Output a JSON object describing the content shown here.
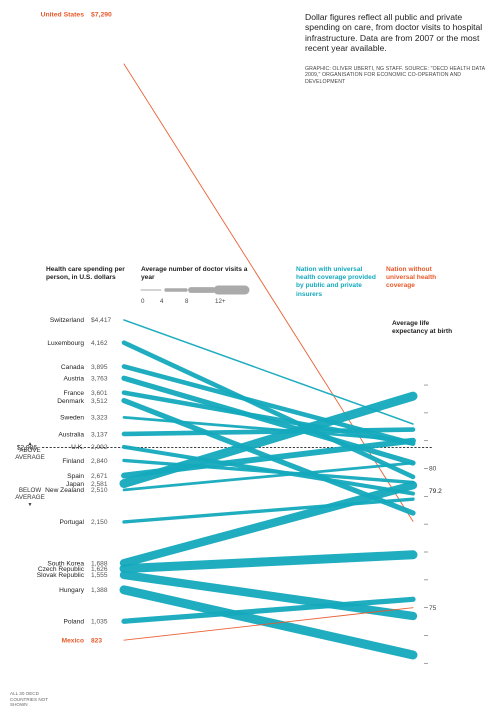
{
  "note": "Dollar figures reflect all public and private spending on care, from doctor visits to hospital infrastructure. Data are from 2007 or the most recent year available.",
  "credit": "GRAPHIC: OLIVER UBERTI, NG STAFF. SOURCE: \"OECD HEALTH DATA 2009,\" ORGANISATION FOR ECONOMIC CO-OPERATION AND DEVELOPMENT",
  "headers": {
    "spending": "Health care spending per person, in U.S. dollars",
    "visits": "Average number of doctor visits a year",
    "life": "Average life expectancy at birth"
  },
  "legend": {
    "universal": "Nation with universal health coverage provided by public and private insurers",
    "non_universal": "Nation without universal health coverage",
    "visit_ticks": [
      "0",
      "4",
      "8",
      "12+"
    ]
  },
  "average": {
    "above": "ABOVE AVERAGE",
    "below": "BELOW AVERAGE",
    "spending_label": "$2,986",
    "life_label": "79.2"
  },
  "footnote": "ALL 30 OECD COUNTRIES NOT SHOWN",
  "colors": {
    "universal": "#14a9bd",
    "non_universal": "#e85a2b"
  },
  "chart_data": {
    "type": "slope",
    "left_axis": "spending",
    "right_axis": "life",
    "right_ticks": [
      "80",
      "75"
    ],
    "right_range": [
      72.4,
      83.9
    ],
    "average_spending": 2986,
    "average_life": 79.2,
    "series": [
      {
        "country": "United States",
        "spending": 7290,
        "spending_label": "$7,290",
        "life": 78.1,
        "visits": 4,
        "universal": false
      },
      {
        "country": "Switzerland",
        "spending": 4417,
        "spending_label": "$4,417",
        "life": 81.6,
        "visits": 1,
        "universal": true
      },
      {
        "country": "Luxembourg",
        "spending": 4162,
        "spending_label": "4,162",
        "life": 79.7,
        "visits": 6,
        "universal": true
      },
      {
        "country": "Canada",
        "spending": 3895,
        "spending_label": "3,895",
        "life": 80.9,
        "visits": 6,
        "universal": true
      },
      {
        "country": "Austria",
        "spending": 3763,
        "spending_label": "3,763",
        "life": 80.2,
        "visits": 7,
        "universal": true
      },
      {
        "country": "France",
        "spending": 3601,
        "spending_label": "3,601",
        "life": 80.9,
        "visits": 6,
        "universal": true
      },
      {
        "country": "Denmark",
        "spending": 3512,
        "spending_label": "3,512",
        "life": 78.4,
        "visits": 7,
        "universal": true
      },
      {
        "country": "Sweden",
        "spending": 3323,
        "spending_label": "3,323",
        "life": 81.0,
        "visits": 3,
        "universal": true
      },
      {
        "country": "Australia",
        "spending": 3137,
        "spending_label": "3,137",
        "life": 81.4,
        "visits": 6,
        "universal": true
      },
      {
        "country": "U.K.",
        "spending": 2992,
        "spending_label": "2,992",
        "life": 79.1,
        "visits": 5,
        "universal": true
      },
      {
        "country": "Finland",
        "spending": 2840,
        "spending_label": "2,840",
        "life": 79.5,
        "visits": 4,
        "universal": true
      },
      {
        "country": "Spain",
        "spending": 2671,
        "spending_label": "2,671",
        "life": 81.0,
        "visits": 8,
        "universal": true
      },
      {
        "country": "Japan",
        "spending": 2581,
        "spending_label": "2,581",
        "life": 82.6,
        "visits": 13,
        "universal": true
      },
      {
        "country": "New Zealand",
        "spending": 2510,
        "spending_label": "2,510",
        "life": 80.2,
        "visits": 3,
        "universal": true
      },
      {
        "country": "Portugal",
        "spending": 2150,
        "spending_label": "2,150",
        "life": 78.9,
        "visits": 4,
        "universal": true
      },
      {
        "country": "South Korea",
        "spending": 1688,
        "spending_label": "1,688",
        "life": 79.4,
        "visits": 12,
        "universal": true
      },
      {
        "country": "Czech Republic",
        "spending": 1626,
        "spending_label": "1,626",
        "life": 76.9,
        "visits": 13,
        "universal": true
      },
      {
        "country": "Slovak Republic",
        "spending": 1555,
        "spending_label": "1,555",
        "life": 74.7,
        "visits": 12,
        "universal": true
      },
      {
        "country": "Hungary",
        "spending": 1388,
        "spending_label": "1,388",
        "life": 73.3,
        "visits": 13,
        "universal": true
      },
      {
        "country": "Poland",
        "spending": 1035,
        "spending_label": "1,035",
        "life": 75.3,
        "visits": 7,
        "universal": true
      },
      {
        "country": "Mexico",
        "spending": 823,
        "spending_label": "823",
        "life": 75.0,
        "visits": 3,
        "universal": false
      }
    ]
  }
}
